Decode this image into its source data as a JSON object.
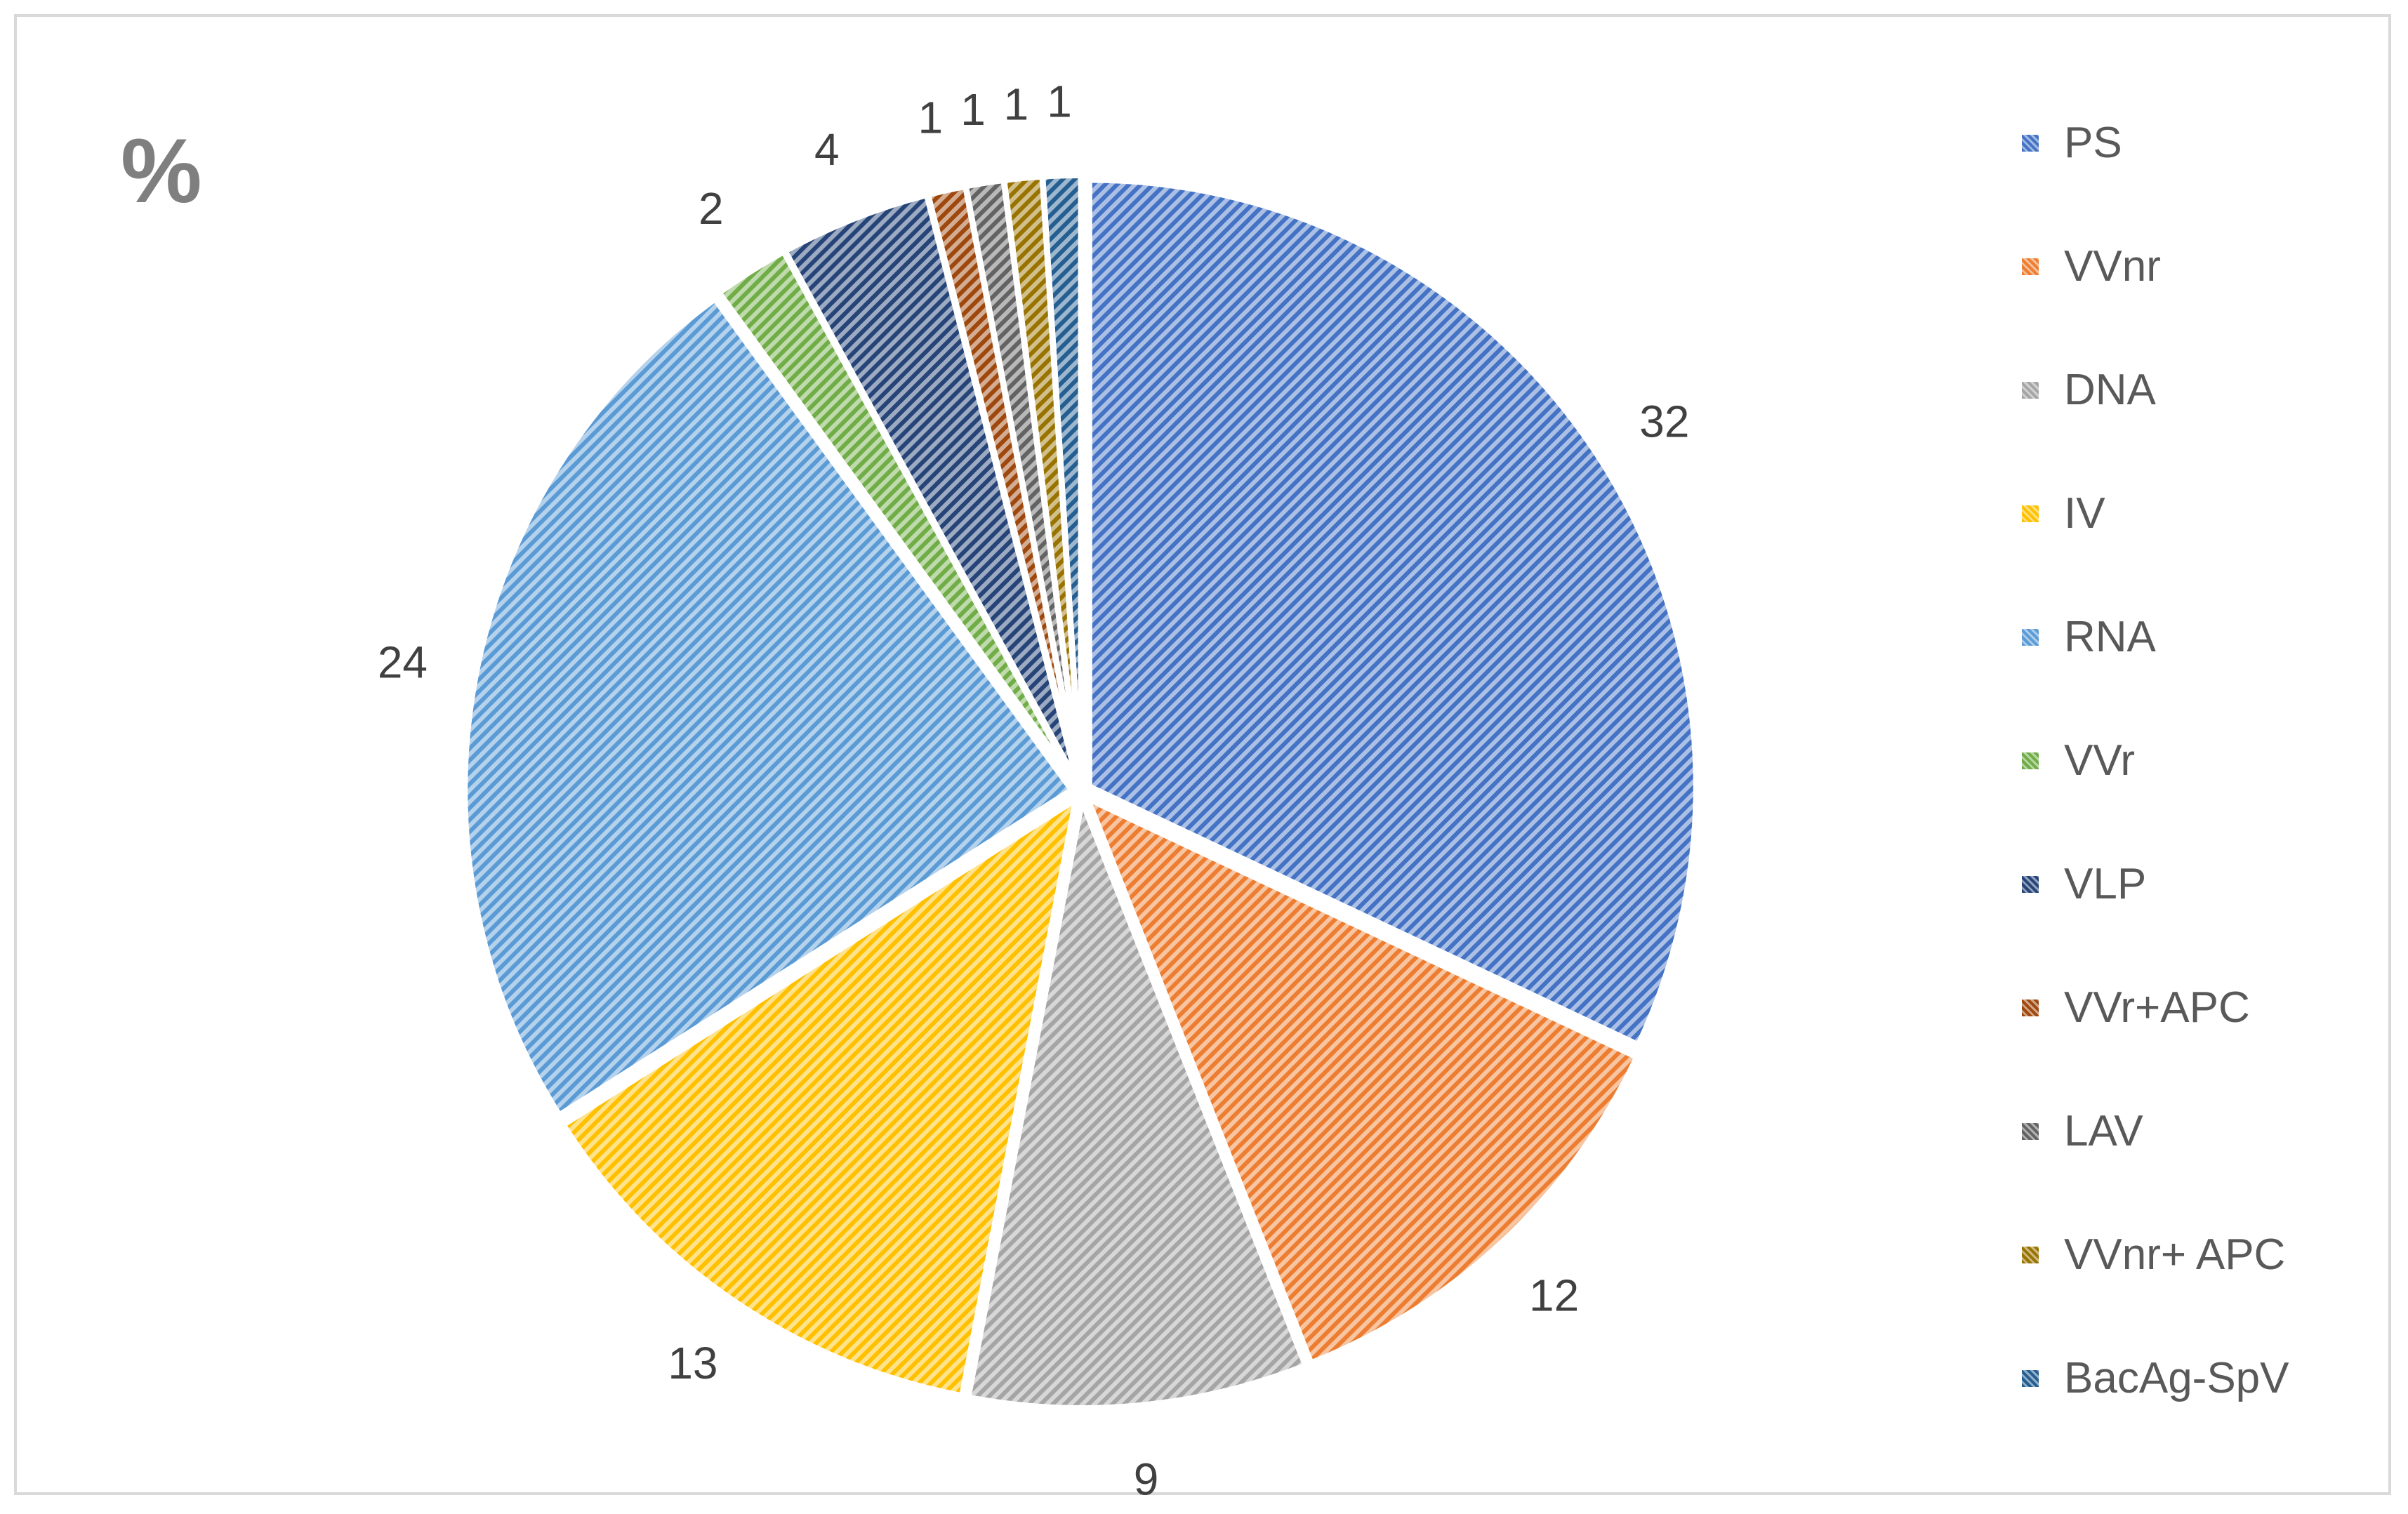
{
  "chart_data": {
    "type": "pie",
    "title": "%",
    "categories": [
      "PS",
      "VVnr",
      "DNA",
      "IV",
      "RNA",
      "VVr",
      "VLP",
      "VVr+APC",
      "LAV",
      "VVnr+ APC",
      "BacAg-SpV"
    ],
    "values": [
      32,
      12,
      9,
      13,
      24,
      2,
      4,
      1,
      1,
      1,
      1
    ],
    "colors": [
      "#4472c4",
      "#ed7d31",
      "#a5a5a5",
      "#ffc000",
      "#5b9bd5",
      "#70ad47",
      "#264478",
      "#9e480e",
      "#636363",
      "#997300",
      "#255e91"
    ],
    "legend_position": "right",
    "fill_pattern": "diagonal-hatch",
    "start_angle_deg": 0,
    "direction": "clockwise"
  },
  "colors": {
    "frame_border": "#d9d9d9",
    "title_text": "#7f7f7f",
    "label_text": "#404040",
    "legend_text": "#595959"
  }
}
